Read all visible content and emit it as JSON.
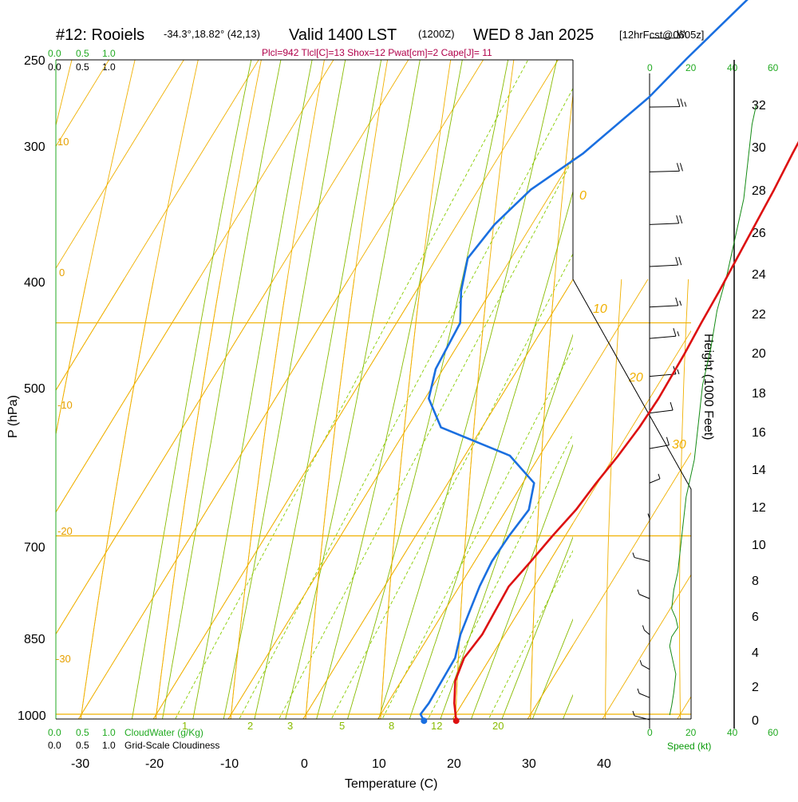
{
  "header": {
    "station": "#12: Rooiels",
    "coords": "-34.3°,18.82° (42,13)",
    "valid": "Valid 1400 LST",
    "zulu": "(1200Z)",
    "date": "WED 8 Jan 2025",
    "forecast": "[12hrFcst@0605z]",
    "params": "Plcl=942 Tlcl[C]=13 Shox=12 Pwat[cm]=2 Cape[J]= 11"
  },
  "cloud_scale": {
    "cloudwater_ticks": [
      "0.0",
      "0.5",
      "1.0"
    ],
    "cloudiness_ticks": [
      "0.0",
      "0.5",
      "1.0"
    ],
    "cloudwater_label": "CloudWater (g/Kg)",
    "cloudiness_label": "Grid-Scale Cloudiness"
  },
  "speed_axis": {
    "ticks": [
      "0",
      "20",
      "40",
      "60"
    ],
    "label": "Speed (kt)"
  },
  "height_axis": {
    "label": "Height (1000 Feet)",
    "ticks": [
      "0",
      "2",
      "4",
      "6",
      "8",
      "10",
      "12",
      "14",
      "16",
      "18",
      "20",
      "22",
      "24",
      "26",
      "28",
      "30",
      "32"
    ]
  },
  "pressure_labels": [
    "250",
    "300",
    "400",
    "500",
    "700",
    "850",
    "1000"
  ],
  "mixing_ratio_labels": [
    "1",
    "2",
    "3",
    "5",
    "8",
    "12",
    "20"
  ],
  "adiabat_labels": [
    "0",
    "10",
    "20",
    "30"
  ],
  "isotherm_labels": [
    "10",
    "0",
    "-10",
    "-20",
    "-30"
  ],
  "colors": {
    "temperature": "#dd1111",
    "dewpoint": "#1a6fe0",
    "isobar": "#f0b000",
    "isotherm": "#f0b000",
    "dry_adiabat": "#f0b000",
    "moist_adiabat": "#88bb00",
    "mixing_ratio": "#88cc00",
    "wind": "#000000",
    "speed": "#138a13"
  },
  "chart_data": {
    "type": "line",
    "title": "#12: Rooiels -34.3°,18.82° (42,13) Valid 1400 LST (1200Z) WED 8 Jan 2025 [12hrFcst@0605z]",
    "xlabel": "Temperature (C)",
    "ylabel": "P (hPa)",
    "y2label": "Height (1000 Feet)",
    "xticks": [
      "-30",
      "-20",
      "-10",
      "0",
      "10",
      "20",
      "30",
      "40"
    ],
    "xlim": [
      -33,
      36
    ],
    "ylim": [
      1020,
      250
    ],
    "yscale": "log",
    "skew_c_per_log_unit": 90,
    "grid": true,
    "series": [
      {
        "name": "Temperature",
        "pressure_hpa": [
          1006,
          990,
          970,
          950,
          930,
          910,
          890,
          870,
          850,
          830,
          810,
          790,
          770,
          750,
          720,
          700,
          680,
          650,
          620,
          600,
          570,
          550,
          520,
          500,
          470,
          450,
          430,
          400,
          370,
          350,
          320,
          300,
          280,
          265
        ],
        "values_c": [
          20.6,
          18.9,
          17.2,
          16.5,
          17.0,
          16.8,
          16.6,
          17.5,
          18.3,
          19.3,
          19.8,
          20.5,
          21.0,
          21.2,
          21.0,
          20.7,
          20.5,
          20.0,
          19.5,
          19.0,
          18.4,
          18.0,
          17.4,
          16.5,
          14.3,
          12.6,
          10.9,
          8.4,
          5.5,
          3.9,
          1.0,
          -0.9,
          -2.6,
          -3.5
        ]
      },
      {
        "name": "Dewpoint",
        "pressure_hpa": [
          1006,
          1000,
          990,
          970,
          950,
          930,
          910,
          890,
          870,
          850,
          830,
          810,
          790,
          770,
          750,
          730,
          700,
          680,
          660,
          640,
          620,
          600,
          570,
          550,
          520,
          500,
          480,
          460,
          440,
          420,
          400,
          380,
          360,
          340,
          320,
          300,
          280,
          265
        ],
        "values_c": [
          16.3,
          15.3,
          15.5,
          15.4,
          15.3,
          14.1,
          13.4,
          12.7,
          12.3,
          12.5,
          13.0,
          11.5,
          6.0,
          -5.5,
          -9.5,
          -11.0,
          -11.5,
          -14.0,
          -15.8,
          -15.0,
          -13.0,
          -9.0,
          -4.8,
          -2.9,
          0.5,
          0.3,
          -2.8,
          -5.8,
          -8.5,
          -9.8,
          -10.4,
          -9.8,
          -7.5,
          -7.0,
          -6.0,
          -4.8,
          -4.0,
          -4.5
        ]
      }
    ],
    "wind_speed_kt": [
      {
        "height_kft": 0.3,
        "speed_kt": 2
      },
      {
        "height_kft": 0.8,
        "speed_kt": 3
      },
      {
        "height_kft": 1.5,
        "speed_kt": 4
      },
      {
        "height_kft": 2.5,
        "speed_kt": 5
      },
      {
        "height_kft": 3.5,
        "speed_kt": 3
      },
      {
        "height_kft": 4.0,
        "speed_kt": 2
      },
      {
        "height_kft": 4.5,
        "speed_kt": 3
      },
      {
        "height_kft": 5.0,
        "speed_kt": 6
      },
      {
        "height_kft": 5.5,
        "speed_kt": 5
      },
      {
        "height_kft": 6.0,
        "speed_kt": 3
      },
      {
        "height_kft": 7.0,
        "speed_kt": 4
      },
      {
        "height_kft": 8.0,
        "speed_kt": 6
      },
      {
        "height_kft": 10.0,
        "speed_kt": 8
      },
      {
        "height_kft": 12.0,
        "speed_kt": 10
      },
      {
        "height_kft": 14.0,
        "speed_kt": 14
      },
      {
        "height_kft": 16.0,
        "speed_kt": 16
      },
      {
        "height_kft": 18.0,
        "speed_kt": 18
      },
      {
        "height_kft": 20.0,
        "speed_kt": 22
      },
      {
        "height_kft": 22.0,
        "speed_kt": 25
      },
      {
        "height_kft": 24.0,
        "speed_kt": 30
      },
      {
        "height_kft": 26.0,
        "speed_kt": 34
      },
      {
        "height_kft": 28.0,
        "speed_kt": 38
      },
      {
        "height_kft": 30.0,
        "speed_kt": 40
      },
      {
        "height_kft": 32.0,
        "speed_kt": 42
      },
      {
        "height_kft": 33.0,
        "speed_kt": 44
      }
    ],
    "wind_barbs": [
      {
        "pressure_hpa": 268,
        "dir_deg": 270,
        "speed_kt": 50
      },
      {
        "pressure_hpa": 287,
        "dir_deg": 270,
        "speed_kt": 50
      },
      {
        "pressure_hpa": 312,
        "dir_deg": 275,
        "speed_kt": 50
      },
      {
        "pressure_hpa": 340,
        "dir_deg": 280,
        "speed_kt": 50
      },
      {
        "pressure_hpa": 372,
        "dir_deg": 285,
        "speed_kt": 50
      },
      {
        "pressure_hpa": 405,
        "dir_deg": 280,
        "speed_kt": 40
      },
      {
        "pressure_hpa": 442,
        "dir_deg": 280,
        "speed_kt": 35
      },
      {
        "pressure_hpa": 487,
        "dir_deg": 280,
        "speed_kt": 30
      },
      {
        "pressure_hpa": 510,
        "dir_deg": 275,
        "speed_kt": 30
      },
      {
        "pressure_hpa": 540,
        "dir_deg": 270,
        "speed_kt": 30
      },
      {
        "pressure_hpa": 575,
        "dir_deg": 265,
        "speed_kt": 25
      },
      {
        "pressure_hpa": 610,
        "dir_deg": 260,
        "speed_kt": 20
      },
      {
        "pressure_hpa": 640,
        "dir_deg": 255,
        "speed_kt": 20
      },
      {
        "pressure_hpa": 665,
        "dir_deg": 250,
        "speed_kt": 20
      },
      {
        "pressure_hpa": 690,
        "dir_deg": 250,
        "speed_kt": 15
      },
      {
        "pressure_hpa": 710,
        "dir_deg": 240,
        "speed_kt": 15
      },
      {
        "pressure_hpa": 735,
        "dir_deg": 240,
        "speed_kt": 15
      },
      {
        "pressure_hpa": 760,
        "dir_deg": 230,
        "speed_kt": 10
      },
      {
        "pressure_hpa": 785,
        "dir_deg": 220,
        "speed_kt": 10
      },
      {
        "pressure_hpa": 810,
        "dir_deg": 200,
        "speed_kt": 5
      },
      {
        "pressure_hpa": 840,
        "dir_deg": 180,
        "speed_kt": 5
      },
      {
        "pressure_hpa": 870,
        "dir_deg": 150,
        "speed_kt": 5
      },
      {
        "pressure_hpa": 900,
        "dir_deg": 160,
        "speed_kt": 5
      },
      {
        "pressure_hpa": 930,
        "dir_deg": 170,
        "speed_kt": 5
      },
      {
        "pressure_hpa": 960,
        "dir_deg": 165,
        "speed_kt": 5
      },
      {
        "pressure_hpa": 985,
        "dir_deg": 160,
        "speed_kt": 5
      },
      {
        "pressure_hpa": 1005,
        "dir_deg": 150,
        "speed_kt": 5
      }
    ]
  }
}
